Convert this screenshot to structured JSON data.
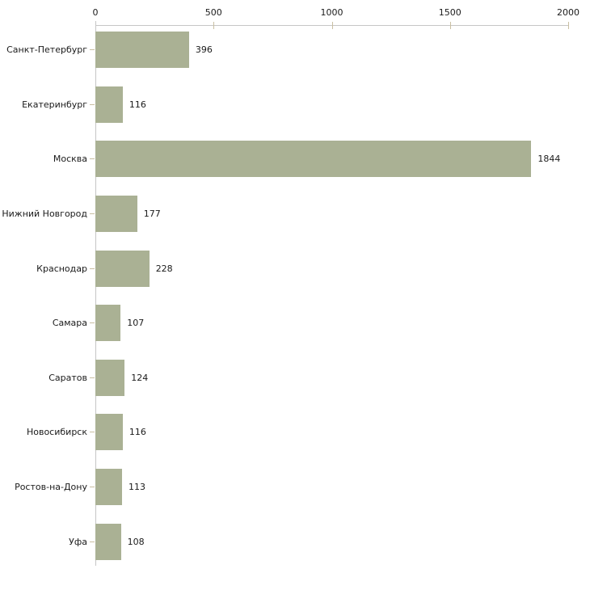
{
  "chart_data": {
    "type": "bar",
    "orientation": "horizontal",
    "title": "",
    "xlabel": "",
    "ylabel": "",
    "categories": [
      "Санкт-Петербург",
      "Екатеринбург",
      "Москва",
      "Нижний Новгород",
      "Краснодар",
      "Самара",
      "Саратов",
      "Новосибирск",
      "Ростов-на-Дону",
      "Уфа"
    ],
    "values": [
      396,
      116,
      1844,
      177,
      228,
      107,
      124,
      116,
      113,
      108
    ],
    "value_labels": [
      "396",
      "116",
      "1844",
      "177",
      "228",
      "107",
      "124",
      "116",
      "113",
      "108"
    ],
    "xlim": [
      0,
      2000
    ],
    "x_ticks": [
      0,
      500,
      1000,
      1500,
      2000
    ],
    "x_tick_labels": [
      "0",
      "500",
      "1000",
      "1500",
      "2000"
    ],
    "grid": false,
    "legend": false,
    "axis_position": "top",
    "colors": {
      "bar_fill": "#aab194",
      "axis_line": "#c6c6c6",
      "tick_mark": "#c9bfa2",
      "text": "#1a1a1a",
      "background": "#ffffff"
    }
  }
}
